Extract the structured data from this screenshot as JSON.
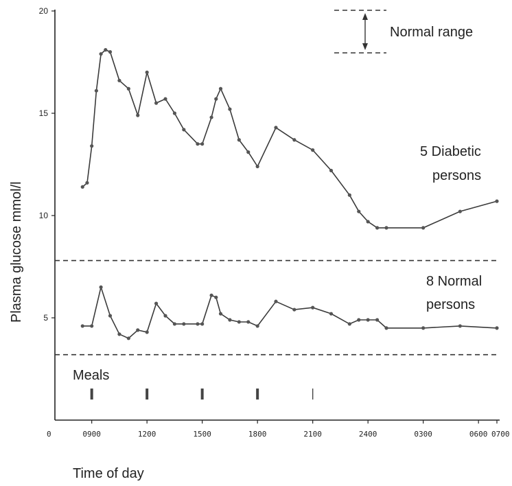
{
  "chart_data": {
    "type": "line",
    "xlabel": "Time of day",
    "ylabel": "Plasma glucose mmol/l",
    "x_unit": "hours since 0700 (08:30 to next-day 07:00)",
    "xlim": [
      0,
      24
    ],
    "ylim": [
      0,
      20
    ],
    "x_ticks": [
      {
        "pos": 2,
        "label": "0900"
      },
      {
        "pos": 5,
        "label": "1200"
      },
      {
        "pos": 8,
        "label": "1500"
      },
      {
        "pos": 11,
        "label": "1800"
      },
      {
        "pos": 14,
        "label": "2100"
      },
      {
        "pos": 17,
        "label": "2400"
      },
      {
        "pos": 20,
        "label": "0300"
      },
      {
        "pos": 23,
        "label": "0600"
      },
      {
        "pos": 24,
        "label": "0700"
      }
    ],
    "x_origin_label": "0",
    "y_ticks": [
      5,
      10,
      15,
      20
    ],
    "reference_lines": [
      7.8,
      3.2
    ],
    "series": [
      {
        "name": "5 Diabetic persons",
        "label_lines": [
          "5 Diabetic",
          "persons"
        ],
        "x": [
          1.5,
          1.75,
          2.0,
          2.25,
          2.5,
          2.75,
          3.0,
          3.5,
          4.0,
          4.5,
          5.0,
          5.5,
          6.0,
          6.5,
          7.0,
          7.75,
          8.0,
          8.5,
          8.75,
          9.0,
          9.5,
          10.0,
          10.5,
          11.0,
          12.0,
          13.0,
          14.0,
          15.0,
          16.0,
          16.5,
          17.0,
          17.5,
          18.0,
          20.0,
          22.0,
          24.0
        ],
        "y": [
          11.4,
          11.6,
          13.4,
          16.1,
          17.9,
          18.1,
          18.0,
          16.6,
          16.2,
          14.9,
          17.0,
          15.5,
          15.7,
          15.0,
          14.2,
          13.5,
          13.5,
          14.8,
          15.7,
          16.2,
          15.2,
          13.7,
          13.1,
          12.4,
          14.3,
          13.7,
          13.2,
          12.2,
          11.0,
          10.2,
          9.7,
          9.4,
          9.4,
          9.4,
          10.2,
          10.7
        ]
      },
      {
        "name": "8 Normal persons",
        "label_lines": [
          "8 Normal",
          "persons"
        ],
        "x": [
          1.5,
          2.0,
          2.5,
          3.0,
          3.5,
          4.0,
          4.5,
          5.0,
          5.5,
          6.0,
          6.5,
          7.0,
          7.75,
          8.0,
          8.5,
          8.75,
          9.0,
          9.5,
          10.0,
          10.5,
          11.0,
          12.0,
          13.0,
          14.0,
          15.0,
          16.0,
          16.5,
          17.0,
          17.5,
          18.0,
          20.0,
          22.0,
          24.0
        ],
        "y": [
          4.6,
          4.6,
          6.5,
          5.1,
          4.2,
          4.0,
          4.4,
          4.3,
          5.7,
          5.1,
          4.7,
          4.7,
          4.7,
          4.7,
          6.1,
          6.0,
          5.2,
          4.9,
          4.8,
          4.8,
          4.6,
          5.8,
          5.4,
          5.5,
          5.2,
          4.7,
          4.9,
          4.9,
          4.9,
          4.5,
          4.5,
          4.6,
          4.5
        ]
      }
    ],
    "annotations": {
      "normal_range_label": "Normal range",
      "meals_label": "Meals",
      "meal_times": [
        2,
        5,
        8,
        11,
        14
      ]
    }
  }
}
